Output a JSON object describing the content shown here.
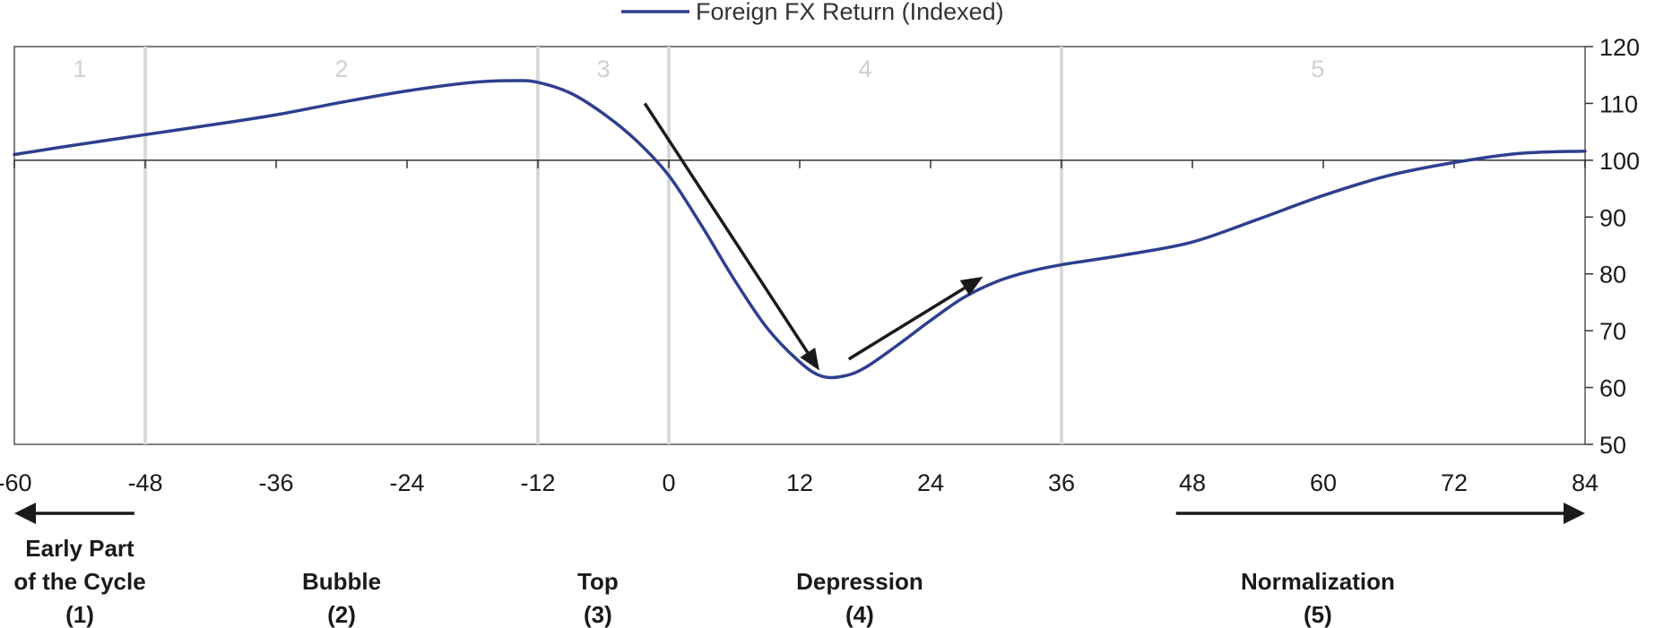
{
  "chart_data": {
    "type": "line",
    "title": "",
    "xlabel": "",
    "ylabel": "",
    "xlim": [
      -60,
      84
    ],
    "ylim": [
      50,
      120
    ],
    "x_ticks": [
      -60,
      -48,
      -36,
      -24,
      -12,
      0,
      12,
      24,
      36,
      48,
      60,
      72,
      84
    ],
    "y_ticks": [
      50,
      60,
      70,
      80,
      90,
      100,
      110,
      120
    ],
    "y_axis_side": "right",
    "legend_position": "top-center",
    "series": [
      {
        "name": "Foreign FX Return (Indexed)",
        "color": "#2e3f8f",
        "x": [
          -60,
          -54,
          -48,
          -42,
          -36,
          -30,
          -24,
          -18,
          -14,
          -12,
          -9,
          -6,
          -3,
          0,
          3,
          6,
          9,
          12,
          14,
          16,
          18,
          21,
          24,
          27,
          30,
          33,
          36,
          42,
          48,
          54,
          60,
          66,
          72,
          78,
          84
        ],
        "y": [
          101,
          102.8,
          104.5,
          106.2,
          108,
          110.2,
          112.2,
          113.7,
          114,
          113.7,
          111.8,
          108.2,
          103.5,
          97.3,
          88.5,
          79,
          70.5,
          64.5,
          62,
          62,
          63.5,
          67.5,
          71.8,
          75.8,
          78.6,
          80.4,
          81.6,
          83.4,
          85.6,
          89.6,
          93.8,
          97.3,
          99.6,
          101.2,
          101.6
        ]
      }
    ],
    "phase_boundaries": [
      -48,
      -12,
      0,
      36
    ],
    "phases": [
      {
        "label": "1",
        "x": -54
      },
      {
        "label": "2",
        "x": -30
      },
      {
        "label": "3",
        "x": -6
      },
      {
        "label": "4",
        "x": 18
      },
      {
        "label": "5",
        "x": 59.5
      }
    ],
    "annotations": {
      "down_arrow": {
        "from": [
          -2.2,
          110
        ],
        "to": [
          13.8,
          63
        ]
      },
      "up_arrow": {
        "from": [
          16.5,
          65
        ],
        "to": [
          28.8,
          79.5
        ]
      }
    },
    "captions": [
      {
        "lines": [
          "Early Part",
          "of the Cycle",
          "(1)"
        ],
        "x": -54
      },
      {
        "lines": [
          "Bubble",
          "(2)"
        ],
        "x": -30
      },
      {
        "lines": [
          "Top",
          "(3)"
        ],
        "x": -6.5
      },
      {
        "lines": [
          "Depression",
          "(4)"
        ],
        "x": 17.5
      },
      {
        "lines": [
          "Normalization",
          "(5)"
        ],
        "x": 59.5
      }
    ],
    "bottom_arrows": [
      {
        "from": -49,
        "to": -60
      },
      {
        "from": 46.5,
        "to": 84
      }
    ]
  }
}
